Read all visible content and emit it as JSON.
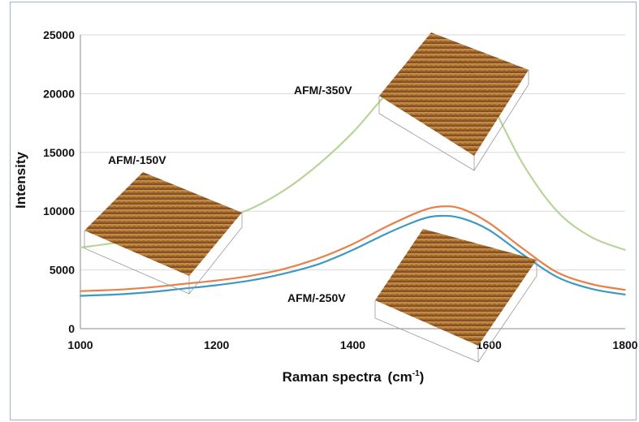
{
  "chart_data": {
    "type": "line",
    "xlabel": "Raman spectra",
    "xlabel_unit": "(cm",
    "xlabel_unit_sup": "-1",
    "xlabel_unit_close": ")",
    "ylabel": "Intensity",
    "xlim": [
      1000,
      1800
    ],
    "ylim": [
      0,
      25000
    ],
    "xticks": [
      "1000",
      "1200",
      "1400",
      "1600",
      "1800"
    ],
    "yticks": [
      "0",
      "5000",
      "10000",
      "15000",
      "20000",
      "25000"
    ],
    "grid": "horizontal",
    "colors": {
      "green": "#b9d49a",
      "orange": "#e8804a",
      "blue": "#3d98c4",
      "grid": "#d9d9d9"
    },
    "series": [
      {
        "color": "#b9d49a",
        "x": [
          1000,
          1050,
          1100,
          1150,
          1200,
          1250,
          1300,
          1350,
          1400,
          1450,
          1500,
          1530,
          1560,
          1600,
          1650,
          1700,
          1750,
          1800
        ],
        "values": [
          6900,
          7300,
          7800,
          8400,
          9200,
          10200,
          11800,
          14000,
          16700,
          20000,
          22700,
          23200,
          22700,
          19500,
          14000,
          10000,
          7800,
          6700
        ]
      },
      {
        "color": "#e8804a",
        "x": [
          1000,
          1050,
          1100,
          1150,
          1200,
          1250,
          1300,
          1350,
          1400,
          1450,
          1500,
          1530,
          1560,
          1600,
          1650,
          1700,
          1750,
          1800
        ],
        "values": [
          3200,
          3300,
          3500,
          3800,
          4100,
          4500,
          5100,
          6000,
          7200,
          8700,
          10000,
          10400,
          10200,
          9000,
          6800,
          4800,
          3800,
          3300
        ]
      },
      {
        "color": "#3d98c4",
        "x": [
          1000,
          1050,
          1100,
          1150,
          1200,
          1250,
          1300,
          1350,
          1400,
          1450,
          1500,
          1530,
          1560,
          1600,
          1650,
          1700,
          1750,
          1800
        ],
        "values": [
          2800,
          2900,
          3100,
          3400,
          3700,
          4100,
          4700,
          5500,
          6700,
          8100,
          9300,
          9600,
          9400,
          8400,
          6300,
          4400,
          3400,
          2900
        ]
      }
    ],
    "annotations": [
      "AFM/-350V",
      "AFM/-150V",
      "AFM/-250V"
    ],
    "insets": [
      "afm-surface-350v",
      "afm-surface-150v",
      "afm-surface-250v"
    ]
  }
}
